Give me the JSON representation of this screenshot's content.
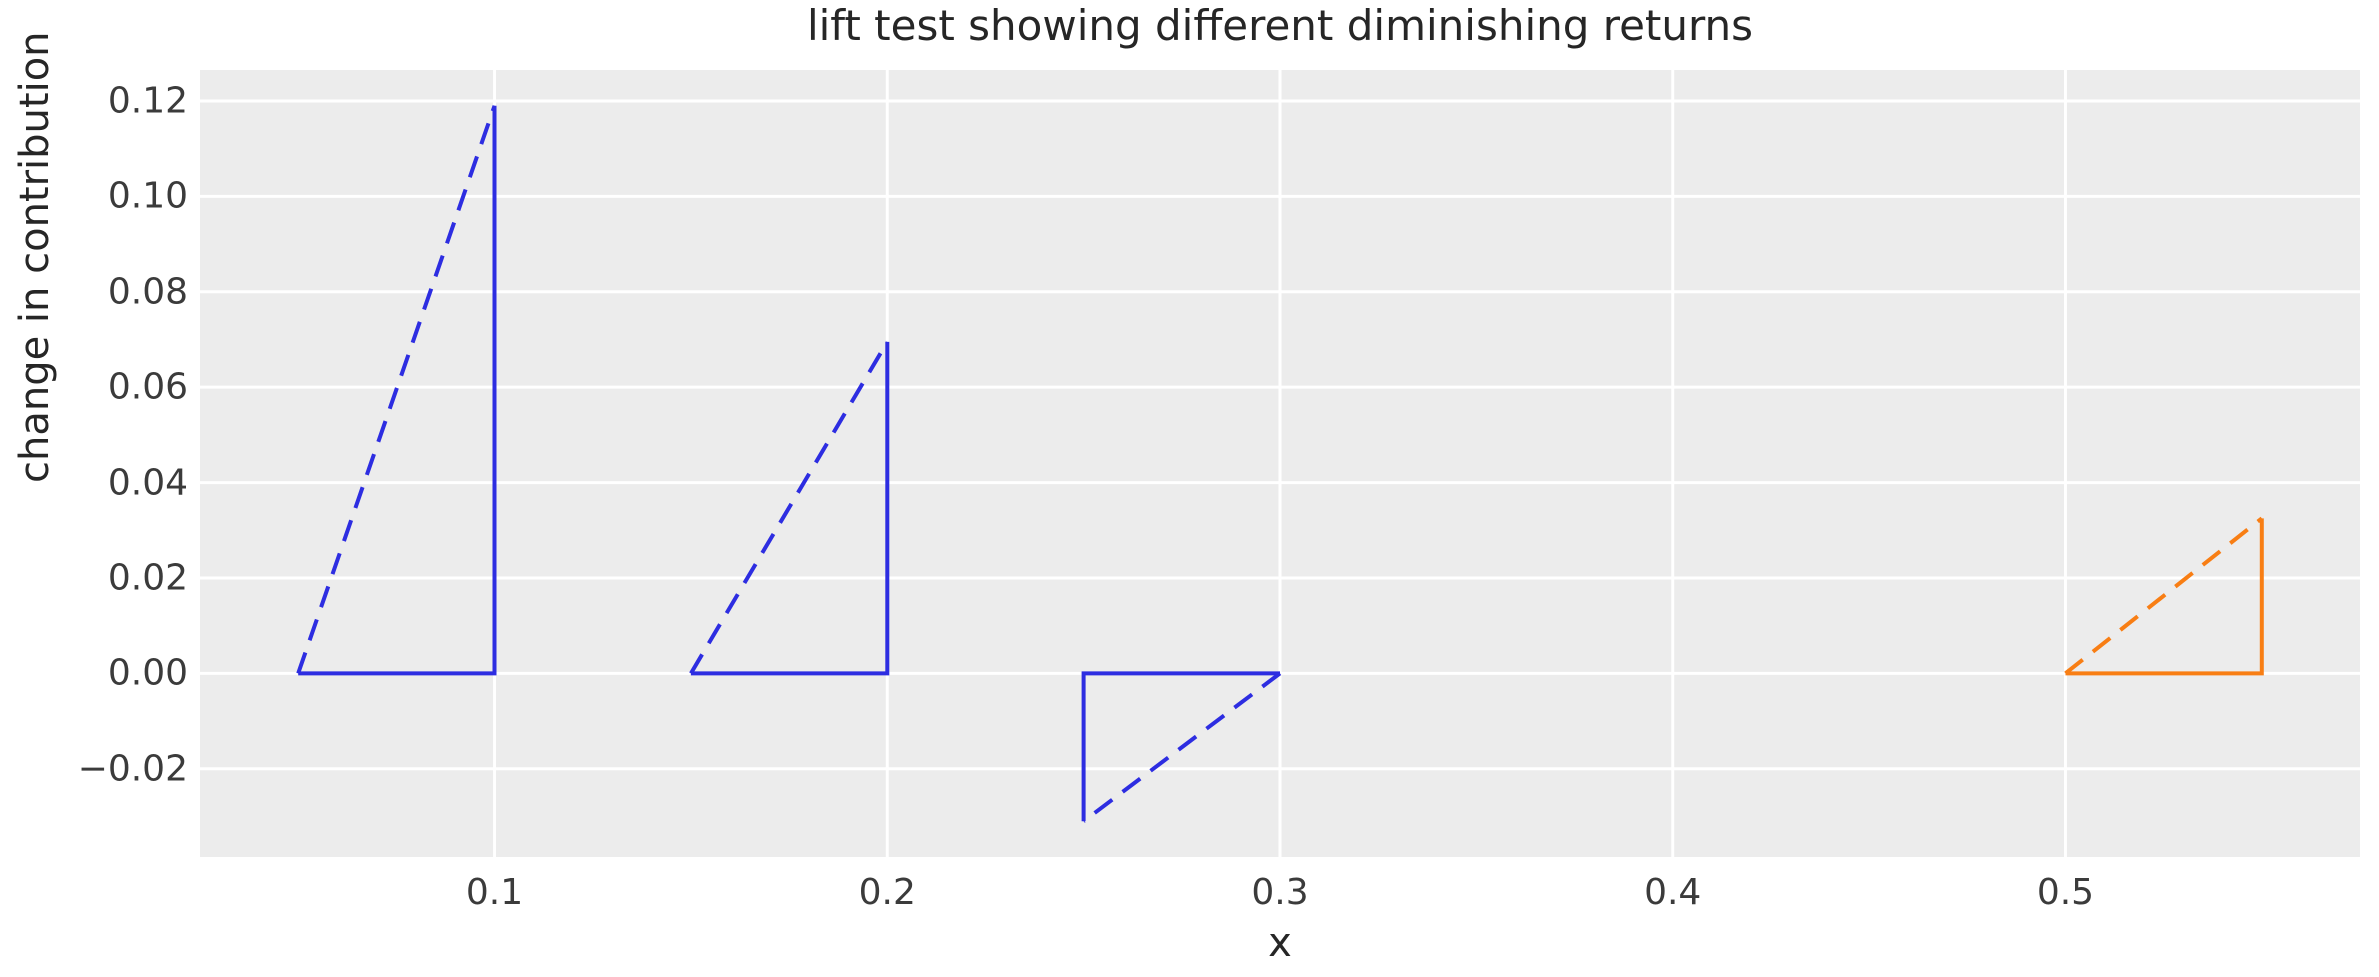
{
  "chart_data": {
    "type": "line",
    "title": "lift test showing different diminishing returns",
    "xlabel": "x",
    "ylabel": "change in contribution",
    "xlim": [
      0.025,
      0.575
    ],
    "ylim": [
      -0.0385,
      0.1265
    ],
    "grid": true,
    "legend": "none",
    "plot_bg_color": "#ececec",
    "figure_bg_color": "#ffffff",
    "grid_color": "#ffffff",
    "xticks": [
      {
        "v": 0.1,
        "label": "0.1"
      },
      {
        "v": 0.2,
        "label": "0.2"
      },
      {
        "v": 0.3,
        "label": "0.3"
      },
      {
        "v": 0.4,
        "label": "0.4"
      },
      {
        "v": 0.5,
        "label": "0.5"
      }
    ],
    "yticks": [
      {
        "v": 0.12,
        "label": "0.12"
      },
      {
        "v": 0.1,
        "label": "0.10"
      },
      {
        "v": 0.08,
        "label": "0.08"
      },
      {
        "v": 0.06,
        "label": "0.06"
      },
      {
        "v": 0.04,
        "label": "0.04"
      },
      {
        "v": 0.02,
        "label": "0.02"
      },
      {
        "v": 0.0,
        "label": "0.00"
      },
      {
        "v": -0.02,
        "label": "−0.02"
      }
    ],
    "triangles": [
      {
        "name": "lift-triangle-1",
        "color": "#2d2de1",
        "x_start": 0.05,
        "x_end": 0.1,
        "y_base": 0.0,
        "lift": 0.119,
        "points": {
          "start": [
            0.05,
            0.0
          ],
          "apex": [
            0.1,
            0.119
          ],
          "corner": [
            0.1,
            0.0
          ]
        }
      },
      {
        "name": "lift-triangle-2",
        "color": "#2d2de1",
        "x_start": 0.15,
        "x_end": 0.2,
        "y_base": 0.0,
        "lift": 0.0695,
        "points": {
          "start": [
            0.15,
            0.0
          ],
          "apex": [
            0.2,
            0.0695
          ],
          "corner": [
            0.2,
            0.0
          ]
        }
      },
      {
        "name": "lift-triangle-3",
        "color": "#2d2de1",
        "x_start": 0.25,
        "x_end": 0.3,
        "y_base": 0.0,
        "lift": -0.031,
        "points": {
          "start": [
            0.3,
            0.0
          ],
          "apex": [
            0.25,
            -0.031
          ],
          "corner": [
            0.25,
            0.0
          ]
        }
      },
      {
        "name": "lift-triangle-4",
        "color": "#f87e14",
        "x_start": 0.5,
        "x_end": 0.55,
        "y_base": 0.0,
        "lift": 0.0325,
        "points": {
          "start": [
            0.5,
            0.0
          ],
          "apex": [
            0.55,
            0.0325
          ],
          "corner": [
            0.55,
            0.0
          ]
        }
      }
    ]
  }
}
